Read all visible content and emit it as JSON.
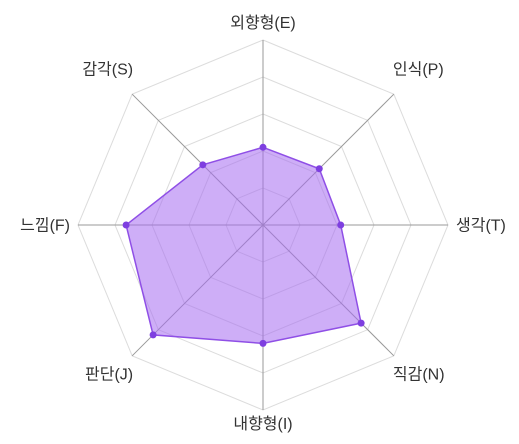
{
  "chart_data": {
    "type": "radar",
    "axes": [
      "외향형(E)",
      "인식(P)",
      "생각(T)",
      "직감(N)",
      "내향형(I)",
      "판단(J)",
      "느낌(F)",
      "감각(S)"
    ],
    "series": [
      {
        "values": [
          42,
          43,
          42,
          75,
          64,
          84,
          74,
          46
        ]
      }
    ],
    "rlim": [
      0,
      100
    ],
    "grid": true,
    "legend": "none",
    "colors": {
      "area": "#a56cf0",
      "line": "#8f4fe6",
      "point": "#7e3fe0",
      "grid": "#dcdcdc",
      "spoke": "#999999",
      "label": "#333333"
    }
  }
}
